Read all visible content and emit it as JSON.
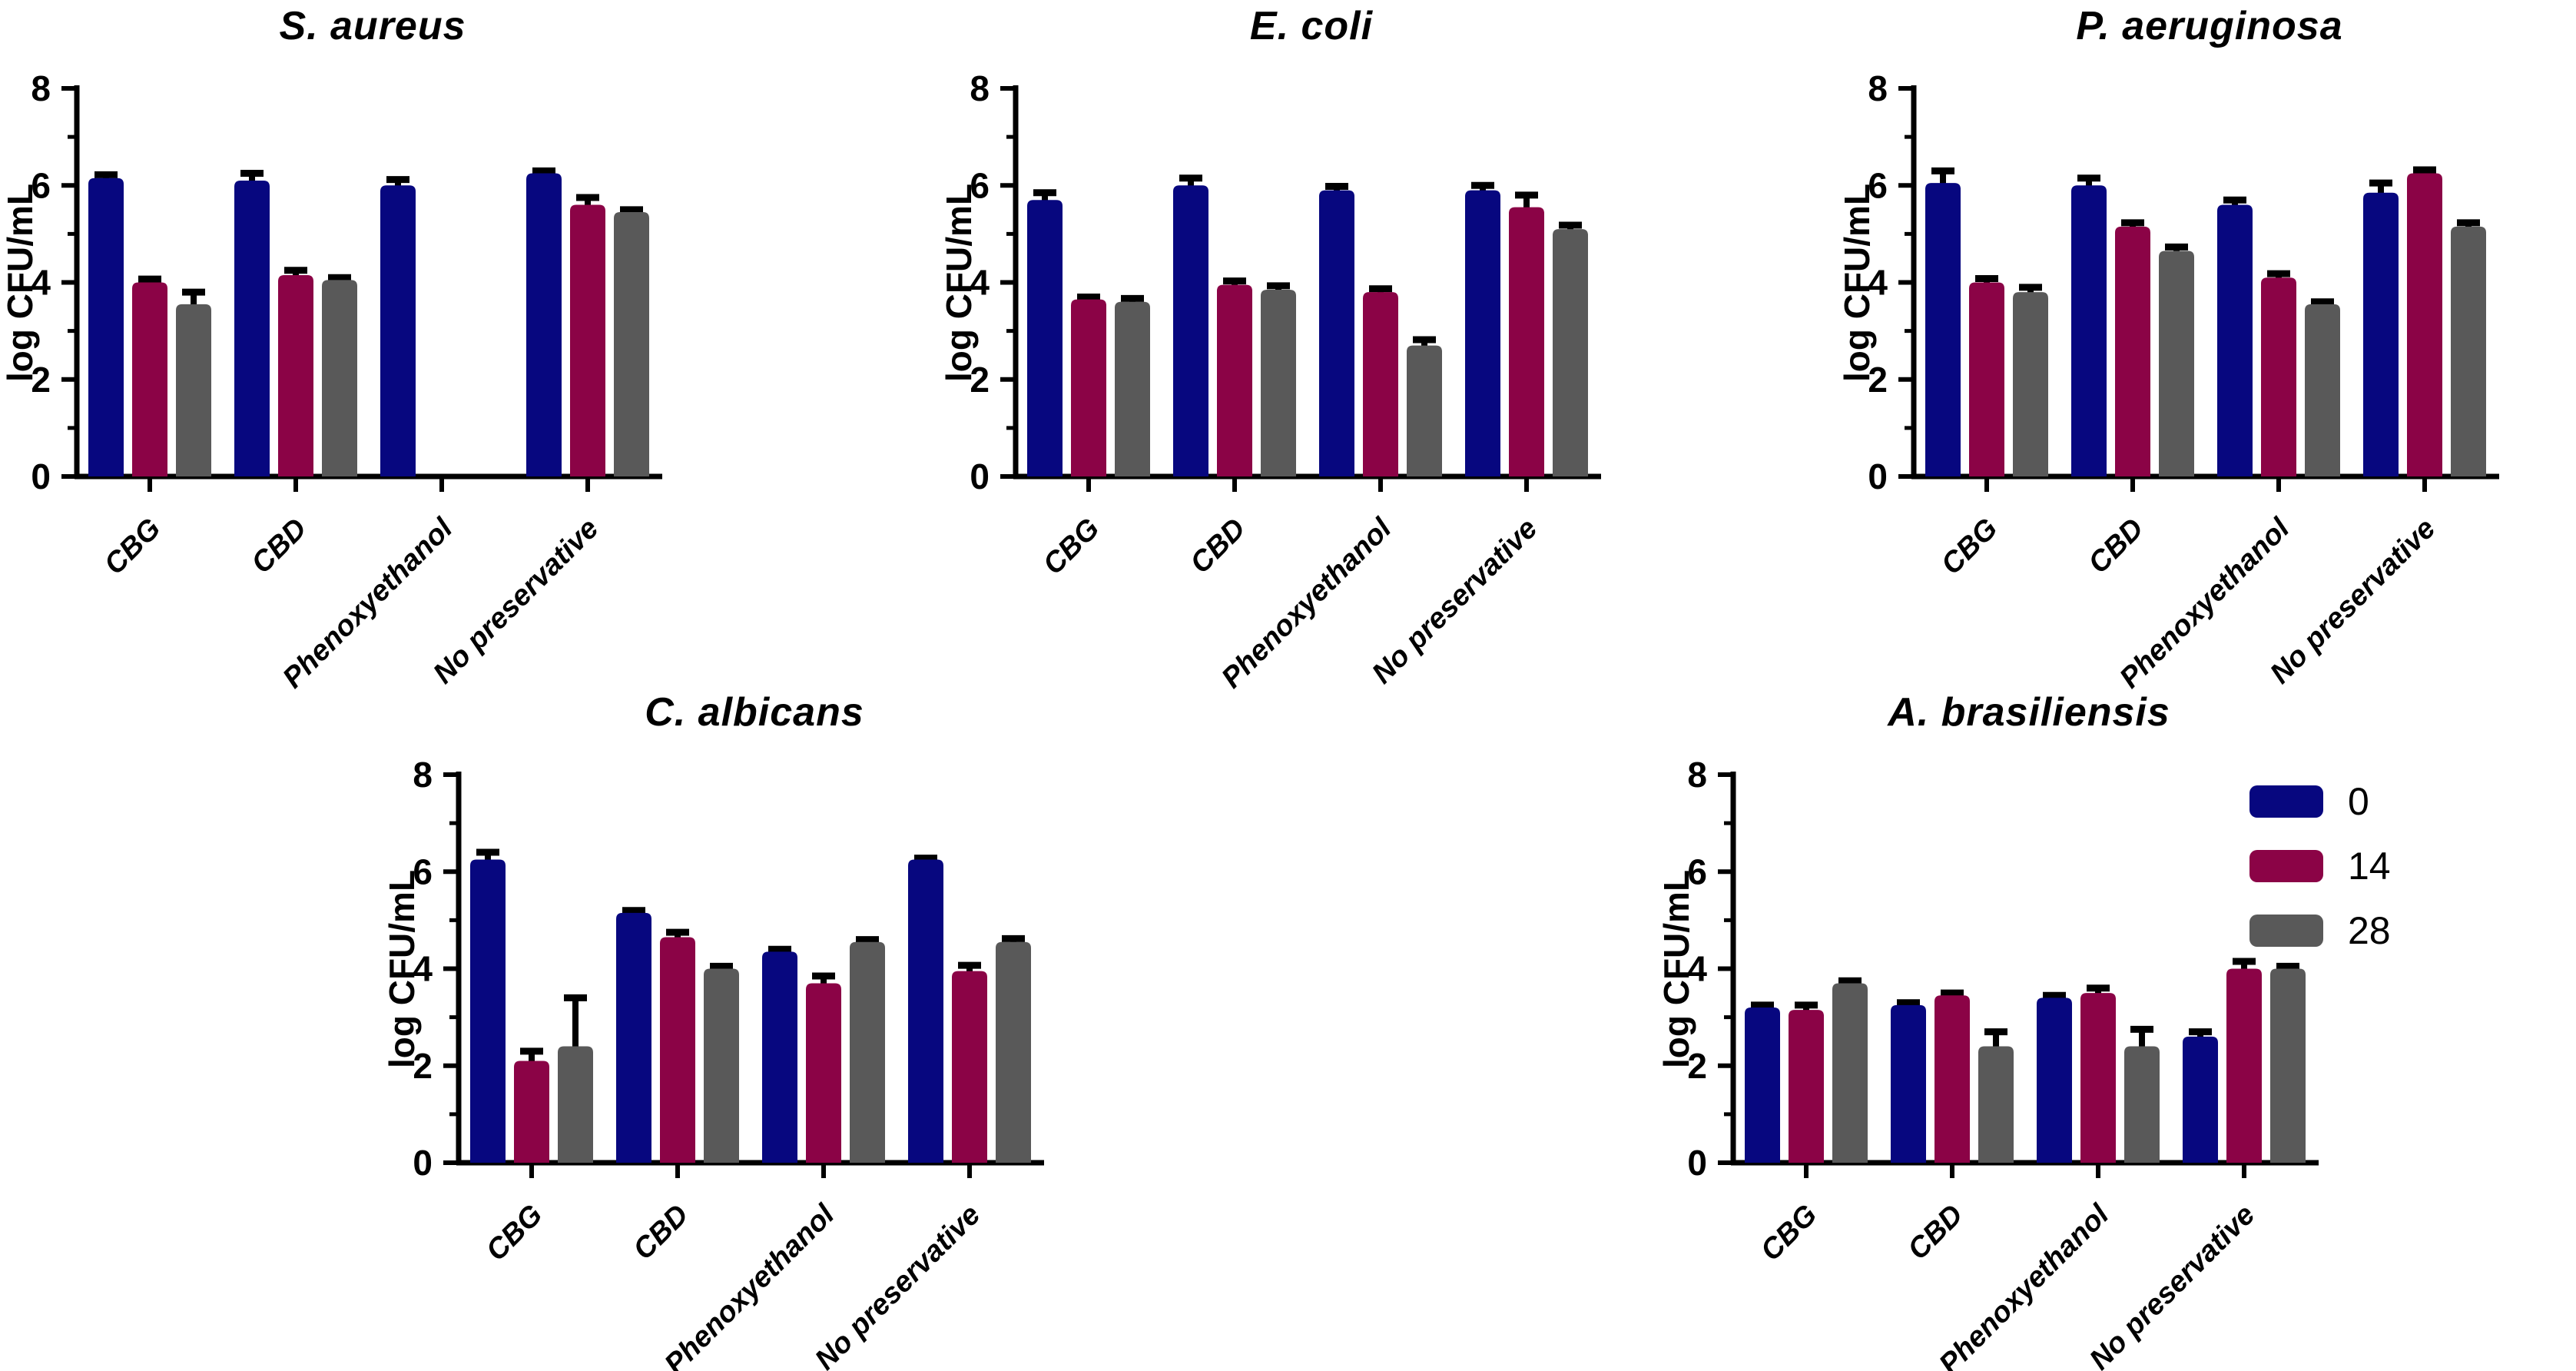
{
  "axis_defaults": {
    "ylabel": "log CFU/mL",
    "ylim": [
      0,
      8
    ],
    "yticks": [
      0,
      2,
      4,
      6,
      8
    ]
  },
  "legend": {
    "items": [
      {
        "label": "0",
        "color": "#07077F"
      },
      {
        "label": "14",
        "color": "#8B0346"
      },
      {
        "label": "28",
        "color": "#595959"
      }
    ]
  },
  "chart_data": [
    {
      "type": "bar",
      "title": "S. aureus",
      "ylabel": "log CFU/mL",
      "ylim": [
        0,
        8
      ],
      "yticks": [
        0,
        2,
        4,
        6,
        8
      ],
      "grid": false,
      "categories": [
        "CBG",
        "CBD",
        "Phenoxyethanol",
        "No preservative"
      ],
      "series": [
        {
          "name": "0",
          "values": [
            6.15,
            6.1,
            6.0,
            6.25
          ],
          "errors": [
            0.07,
            0.15,
            0.12,
            0.05
          ]
        },
        {
          "name": "14",
          "values": [
            4.0,
            4.15,
            0,
            5.6
          ],
          "errors": [
            0.07,
            0.1,
            0,
            0.15
          ]
        },
        {
          "name": "28",
          "values": [
            3.55,
            4.05,
            0,
            5.45
          ],
          "errors": [
            0.25,
            0.05,
            0,
            0.05
          ]
        }
      ]
    },
    {
      "type": "bar",
      "title": "E. coli",
      "ylabel": "log CFU/mL",
      "ylim": [
        0,
        8
      ],
      "yticks": [
        0,
        2,
        4,
        6,
        8
      ],
      "grid": false,
      "categories": [
        "CBG",
        "CBD",
        "Phenoxyethanol",
        "No preservative"
      ],
      "series": [
        {
          "name": "0",
          "values": [
            5.7,
            6.0,
            5.9,
            5.9
          ],
          "errors": [
            0.15,
            0.15,
            0.08,
            0.1
          ]
        },
        {
          "name": "14",
          "values": [
            3.65,
            3.95,
            3.8,
            5.55
          ],
          "errors": [
            0.05,
            0.08,
            0.07,
            0.25
          ]
        },
        {
          "name": "28",
          "values": [
            3.6,
            3.85,
            2.7,
            5.1
          ],
          "errors": [
            0.07,
            0.08,
            0.12,
            0.08
          ]
        }
      ]
    },
    {
      "type": "bar",
      "title": "P. aeruginosa",
      "ylabel": "log CFU/mL",
      "ylim": [
        0,
        8
      ],
      "yticks": [
        0,
        2,
        4,
        6,
        8
      ],
      "grid": false,
      "categories": [
        "CBG",
        "CBD",
        "Phenoxyethanol",
        "No preservative"
      ],
      "series": [
        {
          "name": "0",
          "values": [
            6.05,
            6.0,
            5.6,
            5.85
          ],
          "errors": [
            0.25,
            0.15,
            0.1,
            0.2
          ]
        },
        {
          "name": "14",
          "values": [
            4.0,
            5.15,
            4.1,
            6.25
          ],
          "errors": [
            0.08,
            0.08,
            0.08,
            0.07
          ]
        },
        {
          "name": "28",
          "values": [
            3.8,
            4.65,
            3.55,
            5.15
          ],
          "errors": [
            0.1,
            0.08,
            0.05,
            0.08
          ]
        }
      ]
    },
    {
      "type": "bar",
      "title": "C. albicans",
      "ylabel": "log CFU/mL",
      "ylim": [
        0,
        8
      ],
      "yticks": [
        0,
        2,
        4,
        6,
        8
      ],
      "grid": false,
      "categories": [
        "CBG",
        "CBD",
        "Phenoxyethanol",
        "No preservative"
      ],
      "series": [
        {
          "name": "0",
          "values": [
            6.25,
            5.15,
            4.35,
            6.25
          ],
          "errors": [
            0.15,
            0.05,
            0.05,
            0.03
          ]
        },
        {
          "name": "14",
          "values": [
            2.1,
            4.65,
            3.7,
            3.95
          ],
          "errors": [
            0.2,
            0.1,
            0.15,
            0.12
          ]
        },
        {
          "name": "28",
          "values": [
            2.4,
            4.0,
            4.55,
            4.55
          ],
          "errors": [
            1.0,
            0.05,
            0.05,
            0.07
          ]
        }
      ]
    },
    {
      "type": "bar",
      "title": "A. brasiliensis",
      "ylabel": "log CFU/mL",
      "ylim": [
        0,
        8
      ],
      "yticks": [
        0,
        2,
        4,
        6,
        8
      ],
      "grid": false,
      "categories": [
        "CBG",
        "CBD",
        "Phenoxyethanol",
        "No preservative"
      ],
      "series": [
        {
          "name": "0",
          "values": [
            3.2,
            3.25,
            3.4,
            2.6
          ],
          "errors": [
            0.05,
            0.05,
            0.05,
            0.1
          ]
        },
        {
          "name": "14",
          "values": [
            3.15,
            3.45,
            3.5,
            4.0
          ],
          "errors": [
            0.1,
            0.05,
            0.1,
            0.15
          ]
        },
        {
          "name": "28",
          "values": [
            3.7,
            2.4,
            2.4,
            4.0
          ],
          "errors": [
            0.05,
            0.3,
            0.35,
            0.05
          ]
        }
      ]
    }
  ]
}
